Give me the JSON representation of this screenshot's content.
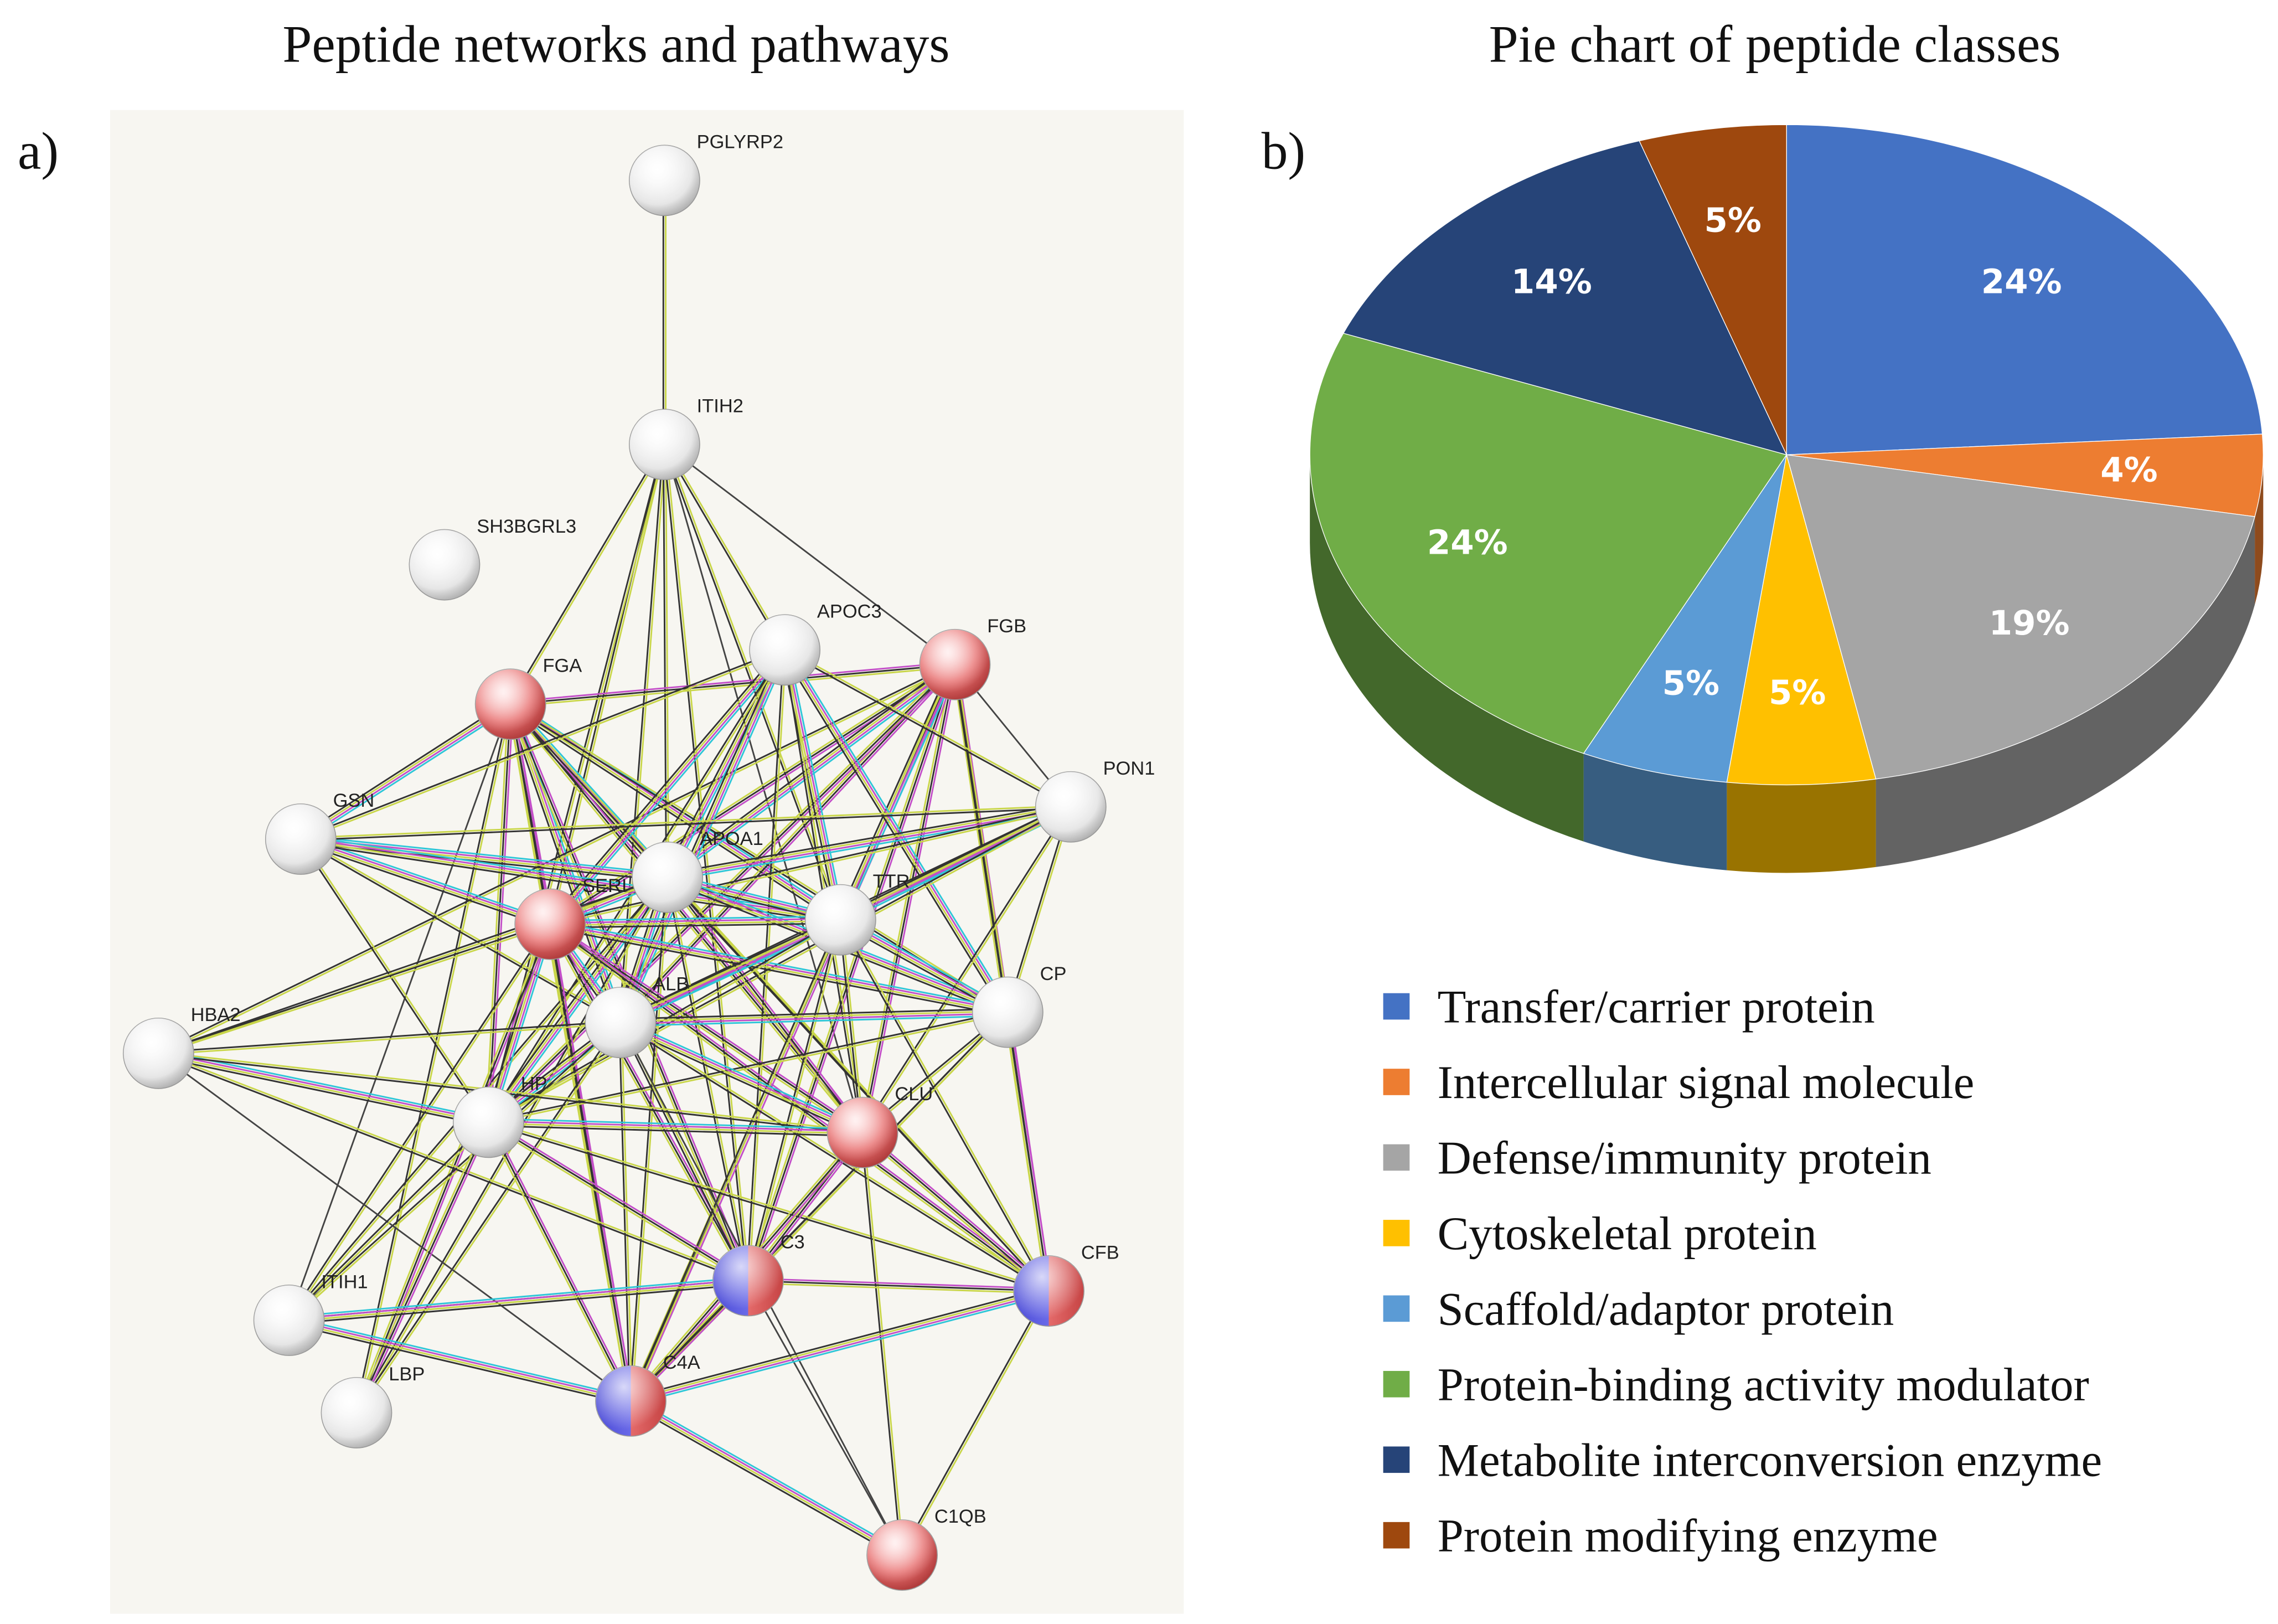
{
  "network": {
    "title": "Peptide networks and pathways",
    "panel_label": "a)",
    "nodes": [
      "PGLYRP2",
      "ITIH2",
      "SH3BGRL3",
      "APOC3",
      "FGB",
      "FGA",
      "GSN",
      "PON1",
      "APOA1",
      "SERI",
      "TTR",
      "CP",
      "ALB",
      "HBA2",
      "HP",
      "CLU",
      "C3",
      "CFB",
      "ITIH1",
      "LBP",
      "C4A",
      "C1QB"
    ]
  },
  "chart_data": {
    "type": "pie",
    "title": "Pie chart of peptide classes",
    "panel_label": "b)",
    "categories": [
      "Transfer/carrier protein",
      "Intercellular signal molecule",
      "Defense/immunity protein",
      "Cytoskeletal protein",
      "Scaffold/adaptor protein",
      "Protein-binding activity modulator",
      "Metabolite interconversion enzyme",
      "Protein modifying enzyme"
    ],
    "values": [
      24,
      4,
      19,
      5,
      5,
      24,
      14,
      5
    ],
    "value_labels": [
      "24%",
      "4%",
      "19%",
      "5%",
      "5%",
      "24%",
      "14%",
      "5%"
    ],
    "colors": [
      "#4472c4",
      "#ed7d31",
      "#a5a5a5",
      "#ffc000",
      "#5b9bd5",
      "#70ad47",
      "#264478",
      "#9e480e"
    ]
  }
}
